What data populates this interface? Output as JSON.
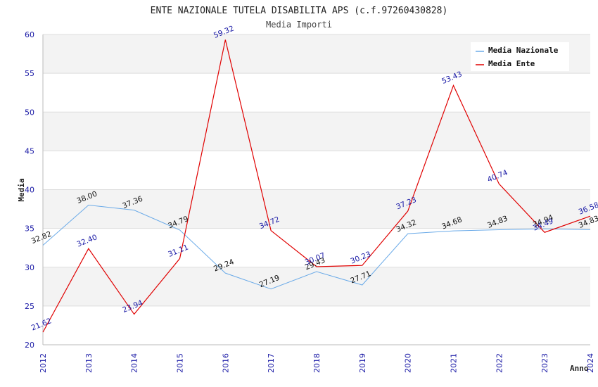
{
  "chart_data": {
    "type": "line",
    "title": "ENTE NAZIONALE TUTELA DISABILITA APS (c.f.97260430828)",
    "subtitle": "Media Importi",
    "xlabel": "Anno",
    "ylabel": "Media",
    "ylim": [
      20,
      60
    ],
    "yticks": [
      20,
      25,
      30,
      35,
      40,
      45,
      50,
      55,
      60
    ],
    "categories": [
      "2012",
      "2013",
      "2014",
      "2015",
      "2016",
      "2017",
      "2018",
      "2019",
      "2020",
      "2021",
      "2022",
      "2023",
      "2024"
    ],
    "grid": "horizontal bands",
    "legend_position": "top-right",
    "series": [
      {
        "name": "Media Nazionale",
        "color": "#6aaae8",
        "values": [
          32.82,
          38.0,
          37.36,
          34.79,
          29.24,
          27.19,
          29.43,
          27.71,
          34.32,
          34.68,
          34.83,
          34.94,
          34.83
        ],
        "labels": [
          "32.82",
          "38.00",
          "37.36",
          "34.79",
          "29.24",
          "27.19",
          "29.43",
          "27.71",
          "34.32",
          "34.68",
          "34.83",
          "34.94",
          "34.83"
        ]
      },
      {
        "name": "Media Ente",
        "color": "#e00000",
        "values": [
          21.62,
          32.4,
          23.94,
          31.11,
          59.32,
          34.72,
          30.07,
          30.23,
          37.23,
          53.43,
          40.74,
          34.49,
          36.58
        ],
        "labels": [
          "21.62",
          "32.40",
          "23.94",
          "31.11",
          "59.32",
          "34.72",
          "30.07",
          "30.23",
          "37.23",
          "53.43",
          "40.74",
          "34.49",
          "36.58"
        ]
      }
    ]
  }
}
